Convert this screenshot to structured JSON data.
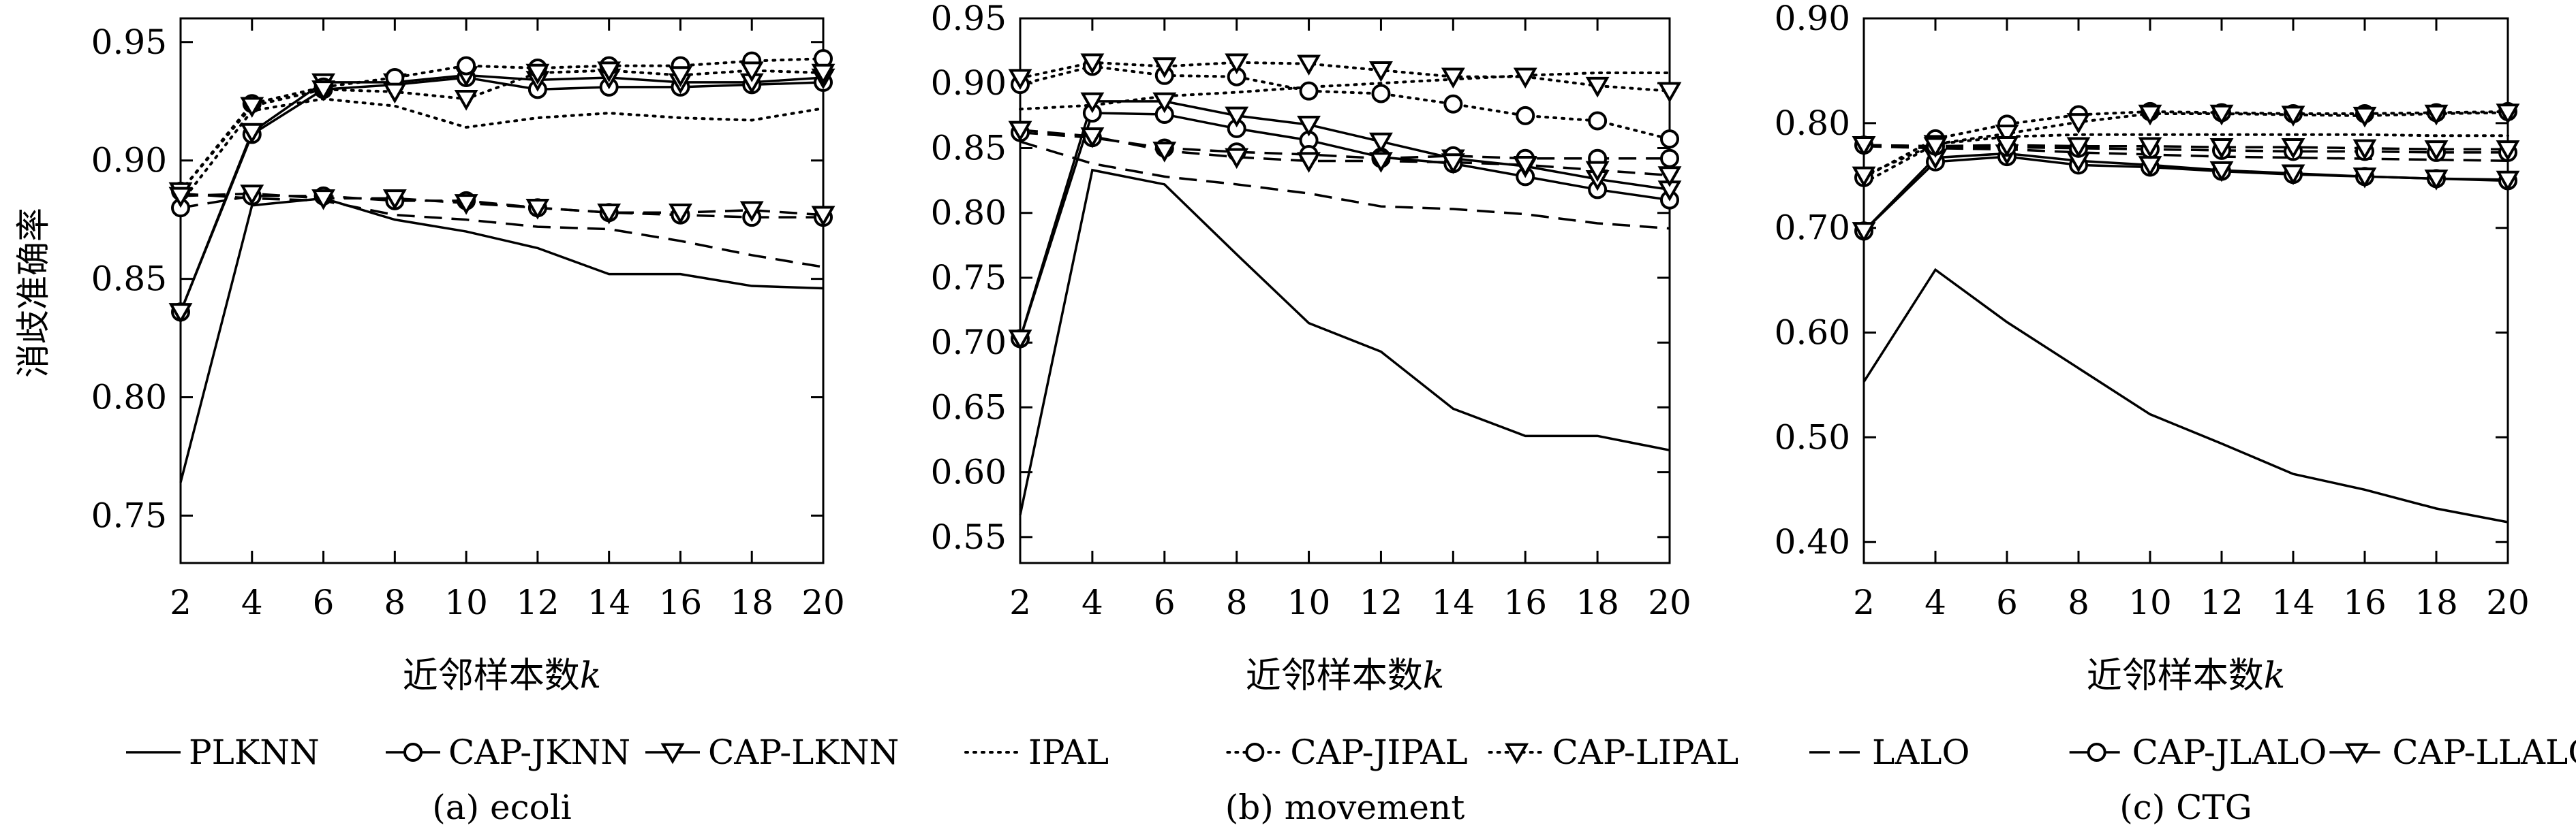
{
  "figure": {
    "ylabel": "消歧准确率",
    "xlabel_prefix": "近邻样本数",
    "xlabel_var": "k"
  },
  "chart_data": [
    {
      "type": "line",
      "subtitle": "(a) ecoli",
      "xlabel": "近邻样本数k",
      "ylabel": "消歧准确率",
      "x": [
        2,
        4,
        6,
        8,
        10,
        12,
        14,
        16,
        18,
        20
      ],
      "xlim": [
        2,
        20
      ],
      "ylim": [
        0.73,
        0.96
      ],
      "yticks": [
        0.75,
        0.8,
        0.85,
        0.9,
        0.95
      ],
      "ytick_labels": [
        "0.75",
        "0.80",
        "0.85",
        "0.90",
        "0.95"
      ],
      "legend": [
        "PLKNN",
        "CAP-JKNN",
        "CAP-LKNN"
      ],
      "series": [
        {
          "name": "PLKNN",
          "style": "solid",
          "marker": "none",
          "values": [
            0.764,
            0.881,
            0.884,
            0.875,
            0.87,
            0.863,
            0.852,
            0.852,
            0.847,
            0.846
          ]
        },
        {
          "name": "CAP-JKNN",
          "style": "solid",
          "marker": "circle",
          "values": [
            0.836,
            0.911,
            0.93,
            0.932,
            0.935,
            0.93,
            0.931,
            0.931,
            0.932,
            0.933
          ]
        },
        {
          "name": "CAP-LKNN",
          "style": "solid",
          "marker": "triangle",
          "values": [
            0.836,
            0.912,
            0.933,
            0.933,
            0.936,
            0.934,
            0.935,
            0.933,
            0.933,
            0.935
          ]
        },
        {
          "name": "IPAL",
          "style": "dotted",
          "marker": "none",
          "values": [
            0.882,
            0.921,
            0.926,
            0.923,
            0.914,
            0.918,
            0.92,
            0.918,
            0.917,
            0.922
          ]
        },
        {
          "name": "CAP-JIPAL",
          "style": "dotted",
          "marker": "circle",
          "values": [
            0.887,
            0.924,
            0.931,
            0.935,
            0.94,
            0.939,
            0.94,
            0.94,
            0.942,
            0.943
          ]
        },
        {
          "name": "CAP-LIPAL",
          "style": "dotted",
          "marker": "triangle",
          "values": [
            0.887,
            0.923,
            0.93,
            0.929,
            0.926,
            0.937,
            0.938,
            0.936,
            0.938,
            0.937
          ]
        },
        {
          "name": "LALO",
          "style": "dashed",
          "marker": "none",
          "values": [
            0.886,
            0.884,
            0.883,
            0.877,
            0.875,
            0.872,
            0.871,
            0.866,
            0.86,
            0.855
          ]
        },
        {
          "name": "CAP-JLALO",
          "style": "dashed",
          "marker": "circle",
          "values": [
            0.88,
            0.885,
            0.885,
            0.883,
            0.883,
            0.88,
            0.878,
            0.877,
            0.876,
            0.876
          ]
        },
        {
          "name": "CAP-LLALO",
          "style": "dashed",
          "marker": "triangle",
          "values": [
            0.885,
            0.886,
            0.884,
            0.884,
            0.882,
            0.88,
            0.878,
            0.878,
            0.879,
            0.877
          ]
        }
      ]
    },
    {
      "type": "line",
      "subtitle": "(b) movement",
      "xlabel": "近邻样本数k",
      "x": [
        2,
        4,
        6,
        8,
        10,
        12,
        14,
        16,
        18,
        20
      ],
      "xlim": [
        2,
        20
      ],
      "ylim": [
        0.53,
        0.95
      ],
      "yticks": [
        0.55,
        0.6,
        0.65,
        0.7,
        0.75,
        0.8,
        0.85,
        0.9,
        0.95
      ],
      "ytick_labels": [
        "0.55",
        "0.60",
        "0.65",
        "0.70",
        "0.75",
        "0.80",
        "0.85",
        "0.90",
        "0.95"
      ],
      "legend": [
        "IPAL",
        "CAP-JIPAL",
        "CAP-LIPAL"
      ],
      "series": [
        {
          "name": "PLKNN",
          "style": "solid",
          "marker": "none",
          "values": [
            0.567,
            0.833,
            0.822,
            0.768,
            0.715,
            0.693,
            0.649,
            0.628,
            0.628,
            0.617
          ]
        },
        {
          "name": "CAP-JKNN",
          "style": "solid",
          "marker": "circle",
          "values": [
            0.703,
            0.877,
            0.876,
            0.865,
            0.856,
            0.843,
            0.838,
            0.828,
            0.818,
            0.81
          ]
        },
        {
          "name": "CAP-LKNN",
          "style": "solid",
          "marker": "triangle",
          "values": [
            0.703,
            0.886,
            0.886,
            0.875,
            0.868,
            0.855,
            0.842,
            0.836,
            0.826,
            0.818
          ]
        },
        {
          "name": "IPAL",
          "style": "dotted",
          "marker": "none",
          "values": [
            0.88,
            0.883,
            0.89,
            0.893,
            0.897,
            0.9,
            0.903,
            0.906,
            0.908,
            0.908
          ]
        },
        {
          "name": "CAP-JIPAL",
          "style": "dotted",
          "marker": "circle",
          "values": [
            0.899,
            0.913,
            0.906,
            0.905,
            0.894,
            0.892,
            0.884,
            0.875,
            0.871,
            0.857
          ]
        },
        {
          "name": "CAP-LIPAL",
          "style": "dotted",
          "marker": "triangle",
          "values": [
            0.904,
            0.916,
            0.913,
            0.916,
            0.915,
            0.91,
            0.905,
            0.905,
            0.898,
            0.894
          ]
        },
        {
          "name": "LALO",
          "style": "dashed",
          "marker": "none",
          "values": [
            0.855,
            0.838,
            0.828,
            0.822,
            0.815,
            0.805,
            0.803,
            0.799,
            0.792,
            0.788
          ]
        },
        {
          "name": "CAP-JLALO",
          "style": "dashed",
          "marker": "circle",
          "values": [
            0.862,
            0.858,
            0.85,
            0.847,
            0.845,
            0.842,
            0.844,
            0.842,
            0.842,
            0.842
          ]
        },
        {
          "name": "CAP-LLALO",
          "style": "dashed",
          "marker": "triangle",
          "values": [
            0.864,
            0.859,
            0.848,
            0.843,
            0.84,
            0.84,
            0.839,
            0.837,
            0.833,
            0.829
          ]
        }
      ]
    },
    {
      "type": "line",
      "subtitle": "(c) CTG",
      "xlabel": "近邻样本数k",
      "x": [
        2,
        4,
        6,
        8,
        10,
        12,
        14,
        16,
        18,
        20
      ],
      "xlim": [
        2,
        20
      ],
      "ylim": [
        0.38,
        0.9
      ],
      "yticks": [
        0.4,
        0.5,
        0.6,
        0.7,
        0.8,
        0.9
      ],
      "ytick_labels": [
        "0.40",
        "0.50",
        "0.60",
        "0.70",
        "0.80",
        "0.90"
      ],
      "legend": [
        "LALO",
        "CAP-JLALO",
        "CAP-LLALO"
      ],
      "series": [
        {
          "name": "PLKNN",
          "style": "solid",
          "marker": "none",
          "values": [
            0.553,
            0.66,
            0.61,
            0.566,
            0.522,
            0.494,
            0.465,
            0.45,
            0.432,
            0.419
          ]
        },
        {
          "name": "CAP-JKNN",
          "style": "solid",
          "marker": "circle",
          "values": [
            0.697,
            0.763,
            0.768,
            0.76,
            0.758,
            0.754,
            0.751,
            0.749,
            0.747,
            0.745
          ]
        },
        {
          "name": "CAP-LKNN",
          "style": "solid",
          "marker": "triangle",
          "values": [
            0.697,
            0.767,
            0.771,
            0.764,
            0.76,
            0.755,
            0.752,
            0.749,
            0.747,
            0.746
          ]
        },
        {
          "name": "IPAL",
          "style": "dotted",
          "marker": "none",
          "values": [
            0.743,
            0.78,
            0.787,
            0.789,
            0.789,
            0.789,
            0.789,
            0.789,
            0.788,
            0.788
          ]
        },
        {
          "name": "CAP-JIPAL",
          "style": "dotted",
          "marker": "circle",
          "values": [
            0.748,
            0.785,
            0.799,
            0.808,
            0.811,
            0.81,
            0.809,
            0.809,
            0.81,
            0.811
          ]
        },
        {
          "name": "CAP-LIPAL",
          "style": "dotted",
          "marker": "triangle",
          "values": [
            0.75,
            0.78,
            0.79,
            0.801,
            0.809,
            0.809,
            0.808,
            0.807,
            0.809,
            0.81
          ]
        },
        {
          "name": "LALO",
          "style": "dashed",
          "marker": "none",
          "values": [
            0.778,
            0.776,
            0.775,
            0.772,
            0.77,
            0.768,
            0.767,
            0.766,
            0.765,
            0.764
          ]
        },
        {
          "name": "CAP-JLALO",
          "style": "dashed",
          "marker": "circle",
          "values": [
            0.779,
            0.778,
            0.777,
            0.776,
            0.775,
            0.774,
            0.773,
            0.773,
            0.772,
            0.772
          ]
        },
        {
          "name": "CAP-LLALO",
          "style": "dashed",
          "marker": "triangle",
          "values": [
            0.779,
            0.778,
            0.779,
            0.778,
            0.778,
            0.777,
            0.777,
            0.776,
            0.775,
            0.775
          ]
        }
      ]
    }
  ]
}
